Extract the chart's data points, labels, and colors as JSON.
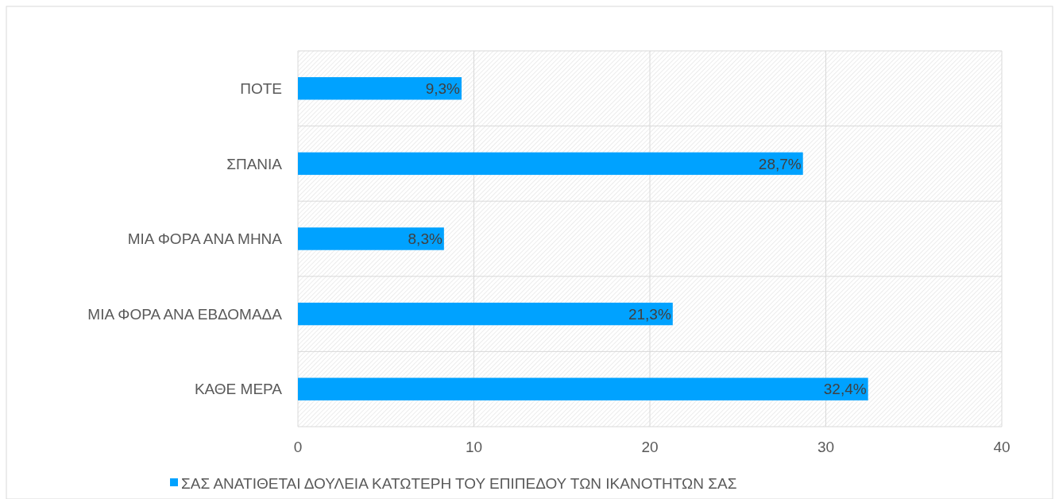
{
  "chart_data": {
    "type": "bar",
    "orientation": "horizontal",
    "categories": [
      "ΠΟΤΕ",
      "ΣΠΑΝΙΑ",
      "ΜΙΑ ΦΟΡΑ ΑΝΑ ΜΗΝΑ",
      "ΜΙΑ ΦΟΡΑ ΑΝΑ ΕΒΔΟΜΑΔΑ",
      "ΚΑΘΕ ΜΕΡΑ"
    ],
    "series": [
      {
        "name": "ΣΑΣ ΑΝΑΤΙΘΕΤΑΙ ΔΟΥΛΕΙΑ ΚΑΤΩΤΕΡΗ ΤΟΥ ΕΠΙΠΕΔΟΥ ΤΩΝ ΙΚΑΝΟΤΗΤΩΝ ΣΑΣ",
        "color": "#00a2ff",
        "values": [
          9.3,
          28.7,
          8.3,
          21.3,
          32.4
        ],
        "value_labels": [
          "9,3%",
          "28,7%",
          "8,3%",
          "21,3%",
          "32,4%"
        ]
      }
    ],
    "xlim": [
      0,
      40
    ],
    "xticks": [
      0,
      10,
      20,
      30,
      40
    ],
    "grid": true,
    "legend": "bottom"
  }
}
